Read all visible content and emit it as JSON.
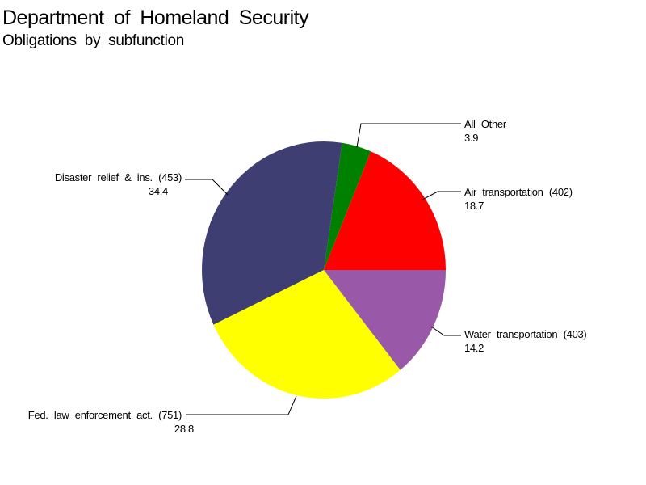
{
  "header": {
    "title": "Department of Homeland Security",
    "subtitle": "Obligations by subfunction"
  },
  "chart_data": {
    "type": "pie",
    "title": "Department of Homeland Security",
    "subtitle": "Obligations by subfunction",
    "legend": "none",
    "start_angle": "3 o'clock (east)",
    "direction": "counterclockwise",
    "slices": [
      {
        "name": "air-transportation",
        "label": "Air transportation (402)",
        "value": 18.7,
        "color": "#FF0000"
      },
      {
        "name": "all-other",
        "label": "All Other",
        "value": 3.9,
        "color": "#008000"
      },
      {
        "name": "disaster-relief",
        "label": "Disaster relief & ins. (453)",
        "value": 34.4,
        "color": "#3E3E72"
      },
      {
        "name": "fed-law-enforcement",
        "label": "Fed. law enforcement act. (751)",
        "value": 28.8,
        "color": "#FFFF00"
      },
      {
        "name": "water-transportation",
        "label": "Water transportation (403)",
        "value": 14.2,
        "color": "#9A59A8"
      }
    ]
  },
  "colors": {
    "background": "#FFFFFF",
    "text": "#000000",
    "leader_line": "#000000"
  }
}
